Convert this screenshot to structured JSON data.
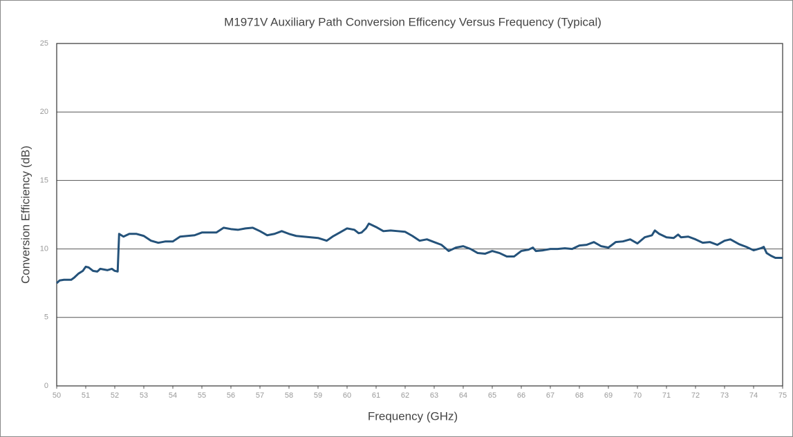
{
  "chart_data": {
    "type": "line",
    "title": "M1971V Auxiliary Path Conversion Efficency Versus Frequency (Typical)",
    "x_label": "Frequency (GHz)",
    "y_label": "Conversion Efficiency (dB)",
    "color": "#24527a",
    "grid": true,
    "xlim": [
      50,
      75
    ],
    "xticks": [
      50,
      51,
      52,
      53,
      54,
      55,
      56,
      57,
      58,
      59,
      60,
      61,
      62,
      63,
      64,
      65,
      66,
      67,
      68,
      69,
      70,
      71,
      72,
      73,
      74,
      75
    ],
    "ylim": [
      0,
      25
    ],
    "yticks": [
      0,
      5,
      10,
      15,
      20,
      25
    ],
    "x": [
      50.0,
      50.1,
      50.25,
      50.5,
      50.6,
      50.75,
      50.9,
      51.0,
      51.1,
      51.25,
      51.4,
      51.5,
      51.75,
      51.9,
      52.0,
      52.1,
      52.15,
      52.3,
      52.5,
      52.75,
      53.0,
      53.25,
      53.5,
      53.75,
      54.0,
      54.25,
      54.5,
      54.75,
      55.0,
      55.25,
      55.5,
      55.75,
      56.0,
      56.25,
      56.5,
      56.75,
      57.0,
      57.25,
      57.5,
      57.75,
      58.0,
      58.25,
      58.5,
      58.75,
      59.0,
      59.3,
      59.5,
      59.75,
      60.0,
      60.25,
      60.4,
      60.5,
      60.65,
      60.75,
      61.0,
      61.25,
      61.5,
      61.75,
      62.0,
      62.25,
      62.5,
      62.75,
      63.0,
      63.25,
      63.5,
      63.75,
      64.0,
      64.25,
      64.5,
      64.75,
      65.0,
      65.25,
      65.5,
      65.75,
      66.0,
      66.25,
      66.4,
      66.5,
      66.75,
      67.0,
      67.25,
      67.5,
      67.75,
      68.0,
      68.25,
      68.5,
      68.75,
      69.0,
      69.25,
      69.5,
      69.75,
      70.0,
      70.25,
      70.5,
      70.6,
      70.75,
      71.0,
      71.25,
      71.4,
      71.5,
      71.75,
      72.0,
      72.25,
      72.5,
      72.75,
      73.0,
      73.2,
      73.5,
      73.75,
      74.0,
      74.25,
      74.35,
      74.45,
      74.6,
      74.75,
      75.0
    ],
    "values": [
      7.5,
      7.7,
      7.75,
      7.75,
      7.9,
      8.2,
      8.4,
      8.7,
      8.65,
      8.4,
      8.35,
      8.55,
      8.45,
      8.55,
      8.4,
      8.35,
      11.1,
      10.9,
      11.1,
      11.1,
      10.95,
      10.6,
      10.45,
      10.55,
      10.55,
      10.9,
      10.95,
      11.0,
      11.2,
      11.2,
      11.2,
      11.55,
      11.45,
      11.4,
      11.5,
      11.55,
      11.3,
      11.0,
      11.1,
      11.3,
      11.1,
      10.95,
      10.9,
      10.85,
      10.8,
      10.6,
      10.9,
      11.2,
      11.5,
      11.4,
      11.15,
      11.2,
      11.5,
      11.85,
      11.6,
      11.3,
      11.35,
      11.3,
      11.25,
      10.95,
      10.6,
      10.7,
      10.5,
      10.3,
      9.85,
      10.1,
      10.2,
      10.0,
      9.7,
      9.65,
      9.85,
      9.7,
      9.45,
      9.45,
      9.85,
      9.95,
      10.1,
      9.85,
      9.9,
      10.0,
      10.0,
      10.05,
      10.0,
      10.25,
      10.3,
      10.5,
      10.2,
      10.1,
      10.5,
      10.55,
      10.7,
      10.4,
      10.85,
      11.0,
      11.35,
      11.1,
      10.85,
      10.8,
      11.05,
      10.85,
      10.9,
      10.7,
      10.45,
      10.5,
      10.3,
      10.6,
      10.7,
      10.35,
      10.15,
      9.9,
      10.05,
      10.15,
      9.7,
      9.5,
      9.35,
      9.35
    ]
  }
}
